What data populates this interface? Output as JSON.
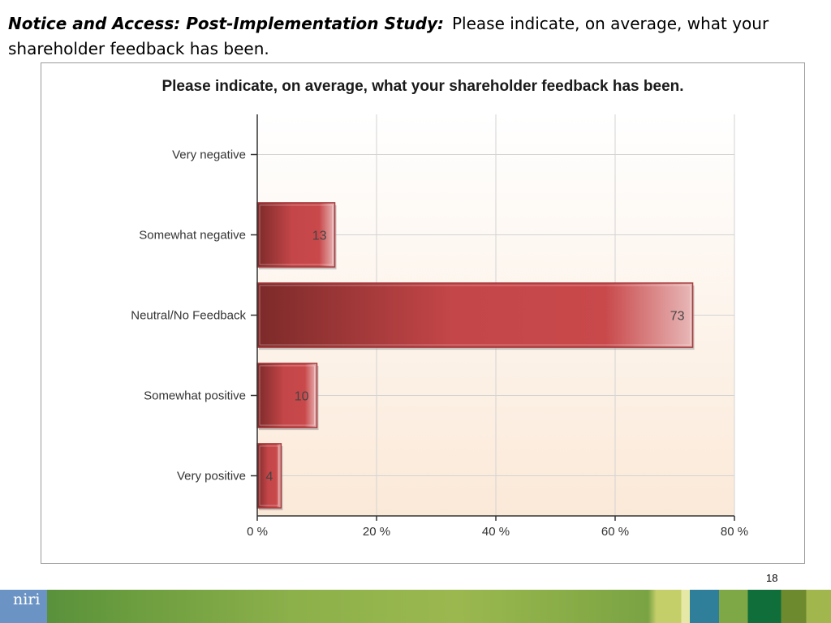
{
  "slide": {
    "title_bold": "Notice and Access: Post-Implementation Study:",
    "title_rest": "Please indicate, on average, what your shareholder feedback has been.",
    "page_number": "18",
    "logo_text": "niri"
  },
  "colors": {
    "bar_dark": "#7d2a2a",
    "bar_mid": "#c44648",
    "bar_light": "#e8b8b8",
    "plot_bg_top": "#ffffff",
    "plot_bg_bottom": "#fbe9d8",
    "grid": "#d3d3d3"
  },
  "chart_data": {
    "type": "bar",
    "orientation": "horizontal",
    "title": "Please indicate, on average, what your shareholder feedback has been.",
    "categories": [
      "Very negative",
      "Somewhat negative",
      "Neutral/No Feedback",
      "Somewhat positive",
      "Very positive"
    ],
    "values": [
      0,
      13,
      73,
      10,
      4
    ],
    "data_labels": [
      "",
      "13",
      "73",
      "10",
      "4"
    ],
    "xlim": [
      0,
      80
    ],
    "x_ticks": [
      0,
      20,
      40,
      60,
      80
    ],
    "x_tick_labels": [
      "0 %",
      "20 %",
      "40 %",
      "60 %",
      "80 %"
    ],
    "grid": true,
    "legend": false
  }
}
